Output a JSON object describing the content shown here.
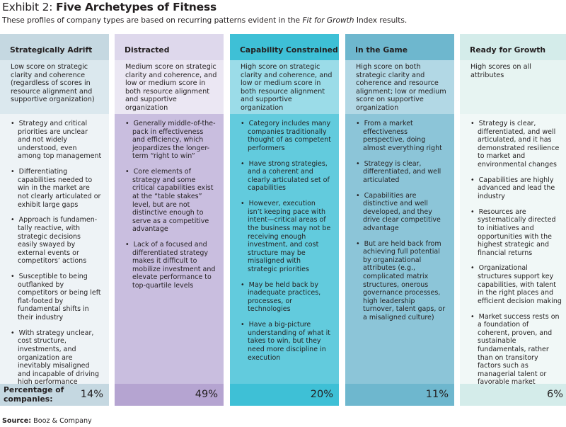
{
  "title": {
    "prefix": "Exhibit 2: ",
    "text": "Five Archetypes of Fitness"
  },
  "subtitle": {
    "before": "These profiles of company types are based on recurring patterns evident in the ",
    "emphasis": "Fit for Growth",
    "after": " Index results."
  },
  "footer_label": "Percentage of companies:",
  "columns": [
    {
      "heading": "Strategically Adrift",
      "score": "Low score on strategic clarity and coherence (regardless of scores in resource alignment and supportive organization)",
      "bullets": [
        "Strategy and critical priorities are unclear and not widely understood, even among top management",
        "Differentiating capabilities needed to win in the market are not clearly articulated or exhibit large gaps",
        "Approach is fundamen-tally reactive, with strategic decisions easily swayed by external events or competitors’ actions",
        "Susceptible to being outflanked by competitors or being left flat-footed by fundamental shifts in their industry",
        "With strategy unclear, cost structure, investments, and organization are inevitably misaligned and incapable of driving high performance"
      ],
      "percentage": "14%",
      "colors": {
        "head": "#c5d8e1",
        "score": "#dbe8ee",
        "body": "#eef3f6",
        "foot": "#c5d8e1"
      }
    },
    {
      "heading": "Distracted",
      "score": "Medium score on strategic clarity and coherence, and low or medium score in both resource alignment and supportive organization",
      "bullets": [
        "Generally middle-of-the-pack in effectiveness and efficiency, which jeopardizes the longer-term “right to win”",
        "Core elements of strategy and some critical capabilities exist at the “table stakes” level, but are not distinctive enough to serve as a competitive advantage",
        "Lack of a focused and differentiated strategy makes it difficult to mobilize investment and elevate performance to top-quartile levels"
      ],
      "percentage": "49%",
      "colors": {
        "head": "#ded8ec",
        "score": "#ebe7f3",
        "body": "#c9bedf",
        "foot": "#b5a4d1"
      }
    },
    {
      "heading": "Capability Constrained",
      "score": "High score on strategic clarity and coherence, and low or medium score in both resource alignment and supportive organization",
      "bullets": [
        "Category includes many companies traditionally thought of as competent performers",
        "Have strong strategies, and a coherent and clearly articulated set of capabilities",
        "However, execution isn’t keeping pace with intent—critical areas of the business may not be receiving enough investment, and cost structure may be misaligned with strategic priorities",
        "May be held back by inadequate practices, processes, or technologies",
        "Have a big-picture understanding of what it takes to win, but they need more discipline in execution"
      ],
      "percentage": "20%",
      "colors": {
        "head": "#3ec0d6",
        "score": "#9bdce8",
        "body": "#62cbdd",
        "foot": "#3ec0d6"
      }
    },
    {
      "heading": "In the Game",
      "score": "High score on both strategic clarity and coherence and resource alignment; low or medium score on supportive organization",
      "bullets": [
        "From a market effectiveness perspective, doing almost everything right",
        "Strategy is clear, differentiated, and well articulated",
        "Capabilities are distinctive and well developed, and they drive clear competitive advantage",
        "But are held back from achieving full potential by organizational attributes (e.g., complicated matrix structures, onerous governance processes, high leadership turnover, talent gaps, or a misaligned culture)"
      ],
      "percentage": "11%",
      "colors": {
        "head": "#6eb7ce",
        "score": "#b2d8e5",
        "body": "#8cc5d8",
        "foot": "#6eb7ce"
      }
    },
    {
      "heading": "Ready for Growth",
      "score": "High scores on all attributes",
      "bullets": [
        "Strategy is clear, differentiated, and well articulated, and it has demonstrated resilience to market and environmental changes",
        "Capabilities are highly advanced and lead the industry",
        "Resources are systematically directed to initiatives and opportunities with the highest strategic and financial returns",
        "Organizational structures support key capabilities, with talent in the right places and efficient decision making",
        "Market success rests on a foundation of coherent, proven, and sustainable fundamentals, rather than on transitory factors such as managerial talent or favorable market conditions"
      ],
      "percentage": "6%",
      "colors": {
        "head": "#d4ecea",
        "score": "#e7f4f2",
        "body": "#f1f8f7",
        "foot": "#d4ecea"
      }
    }
  ],
  "source": {
    "label": "Source:",
    "text": " Booz & Company"
  }
}
